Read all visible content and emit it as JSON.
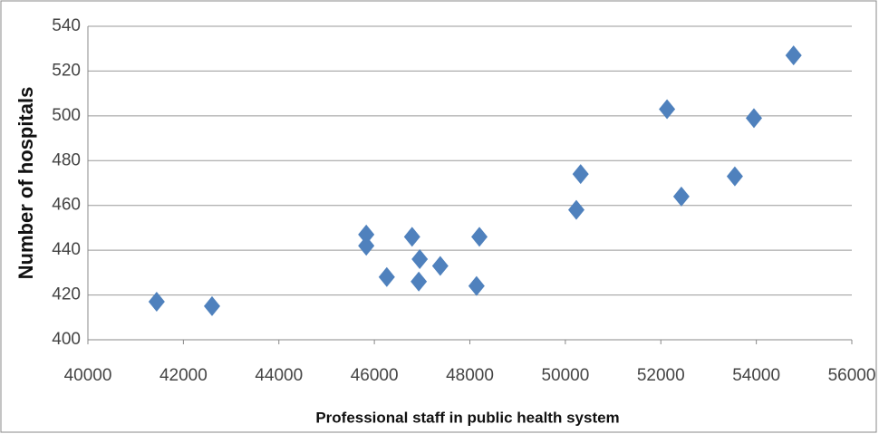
{
  "chart_data": {
    "type": "scatter",
    "x_label": "Professional staff in public health system",
    "y_label": "Number of hospitals",
    "x": [
      41440,
      42600,
      45830,
      45830,
      46260,
      46790,
      46950,
      46930,
      47380,
      48140,
      48200,
      50230,
      50320,
      52130,
      52430,
      53550,
      53950,
      54780
    ],
    "values": [
      417,
      415,
      447,
      442,
      428,
      446,
      436,
      426,
      433,
      424,
      446,
      458,
      474,
      503,
      464,
      473,
      499,
      527
    ],
    "color": "#4f81bd",
    "xlim": [
      40000,
      56000
    ],
    "xticks": [
      40000,
      42000,
      44000,
      46000,
      48000,
      50000,
      52000,
      54000,
      56000
    ],
    "ylim": [
      400,
      540
    ],
    "yticks": [
      400,
      420,
      440,
      460,
      480,
      500,
      520,
      540
    ],
    "grid": true
  }
}
